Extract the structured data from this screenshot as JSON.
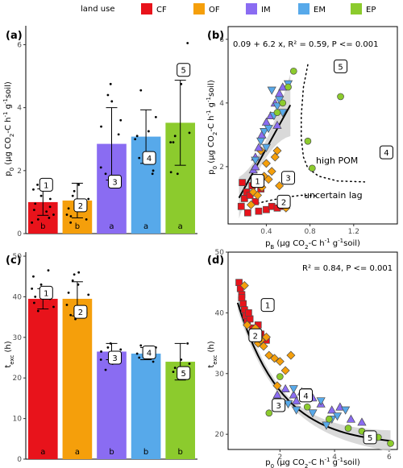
{
  "legend": {
    "title": "land use",
    "items": [
      {
        "key": "CF",
        "label": "CF",
        "color": "#e8131b"
      },
      {
        "key": "OF",
        "label": "OF",
        "color": "#f59f0b"
      },
      {
        "key": "IM",
        "label": "IM",
        "color": "#8a6cf2"
      },
      {
        "key": "EM",
        "label": "EM",
        "color": "#57a9ea"
      },
      {
        "key": "EP",
        "label": "EP",
        "color": "#8ccb2d"
      }
    ]
  },
  "chart_data": [
    {
      "id": "a",
      "panel_label": "(a)",
      "type": "bar",
      "categories": [
        "CF",
        "OF",
        "IM",
        "EM",
        "EP"
      ],
      "values": [
        1.0,
        1.05,
        2.85,
        3.08,
        3.52
      ],
      "errors": [
        0.42,
        0.55,
        1.15,
        0.85,
        1.35
      ],
      "group_letters": [
        "b",
        "b",
        "a",
        "a",
        "a"
      ],
      "box_labels": [
        "1",
        "2",
        "3",
        "4",
        "5"
      ],
      "box_y": [
        1.55,
        0.9,
        1.65,
        2.4,
        5.2
      ],
      "points": [
        [
          1.5,
          1.4,
          1.2,
          1.1,
          0.95,
          0.85,
          0.75,
          0.6,
          0.45,
          0.5,
          0.35,
          1.55,
          0.7
        ],
        [
          1.55,
          1.35,
          1.2,
          0.95,
          0.8,
          0.6,
          0.45,
          0.35,
          0.9,
          1.1,
          0.55
        ],
        [
          4.75,
          4.4,
          3.6,
          3.4,
          3.15,
          2.1,
          1.75,
          1.9,
          4.2
        ],
        [
          4.55,
          3.7,
          3.25,
          3.1,
          2.4,
          2.0,
          1.9,
          3.0
        ],
        [
          6.05,
          4.75,
          3.2,
          3.1,
          2.9,
          1.95,
          1.9,
          2.9
        ]
      ],
      "ylabel": "p0 (μg CO2-C h-1 g-1soil)",
      "ylim": [
        0,
        6.6
      ],
      "yticks": [
        0,
        2,
        4,
        6
      ]
    },
    {
      "id": "b",
      "panel_label": "(b)",
      "type": "scatter",
      "equation": "0.09 + 6.2  x, R² = 0.59, P <= 0.001",
      "xlabel": "pB (μg CO2-C h-1 g-1soil)",
      "ylabel": "p0 (μg CO2-C h-1 g-1soil)",
      "xlim": [
        0.05,
        1.6
      ],
      "ylim": [
        0.2,
        6.4
      ],
      "xticks": [
        0.4,
        0.8,
        1.2
      ],
      "yticks": [
        2,
        4,
        6
      ],
      "fit": {
        "intercept": 0.09,
        "slope": 6.2,
        "x_range": [
          0.15,
          0.62
        ]
      },
      "annotations": [
        "high POM",
        "uncertain lag"
      ],
      "box_labels": [
        {
          "label": "1",
          "x": 0.32,
          "y": 1.55
        },
        {
          "label": "2",
          "x": 0.56,
          "y": 0.9
        },
        {
          "label": "3",
          "x": 0.6,
          "y": 1.65
        },
        {
          "label": "4",
          "x": 1.5,
          "y": 2.45
        },
        {
          "label": "5",
          "x": 1.08,
          "y": 5.15
        }
      ],
      "series": [
        {
          "group": "CF",
          "shape": "square",
          "x": [
            0.17,
            0.2,
            0.22,
            0.25,
            0.27,
            0.3,
            0.33,
            0.35,
            0.18,
            0.4,
            0.45,
            0.5,
            0.55,
            0.23,
            0.29
          ],
          "y": [
            0.75,
            1.0,
            1.2,
            1.1,
            1.4,
            0.9,
            0.6,
            1.3,
            1.5,
            0.65,
            0.75,
            0.7,
            0.75,
            0.55,
            1.6
          ]
        },
        {
          "group": "OF",
          "shape": "diamond",
          "x": [
            0.26,
            0.28,
            0.3,
            0.32,
            0.36,
            0.38,
            0.4,
            0.42,
            0.45,
            0.48,
            0.5,
            0.52,
            0.35,
            0.58
          ],
          "y": [
            0.8,
            1.2,
            1.5,
            1.1,
            1.35,
            1.7,
            2.1,
            1.6,
            1.85,
            2.3,
            2.5,
            1.4,
            2.5,
            0.7
          ]
        },
        {
          "group": "IM",
          "shape": "triangle-up",
          "x": [
            0.28,
            0.3,
            0.33,
            0.36,
            0.4,
            0.44,
            0.48,
            0.5,
            0.55,
            0.3,
            0.52
          ],
          "y": [
            1.9,
            2.3,
            2.6,
            3.0,
            3.4,
            3.6,
            4.0,
            3.3,
            4.5,
            2.0,
            4.3
          ]
        },
        {
          "group": "EM",
          "shape": "triangle-down",
          "x": [
            0.3,
            0.35,
            0.38,
            0.42,
            0.45,
            0.5,
            0.52,
            0.55,
            0.6,
            0.4,
            0.47
          ],
          "y": [
            2.2,
            2.8,
            3.1,
            3.2,
            4.4,
            3.9,
            4.1,
            3.7,
            4.6,
            2.6,
            3.6
          ]
        },
        {
          "group": "EP",
          "shape": "circle",
          "x": [
            0.5,
            0.55,
            0.6,
            0.65,
            0.78,
            0.82,
            1.08,
            0.62
          ],
          "y": [
            3.7,
            4.0,
            4.5,
            5.0,
            2.8,
            1.95,
            4.2,
            1.55
          ]
        }
      ]
    },
    {
      "id": "c",
      "panel_label": "(c)",
      "type": "bar",
      "categories": [
        "CF",
        "OF",
        "IM",
        "EM",
        "EP"
      ],
      "values": [
        39.5,
        39.5,
        26.5,
        26.0,
        24.0
      ],
      "errors": [
        2.5,
        4.2,
        2.0,
        1.5,
        4.5
      ],
      "group_letters": [
        "a",
        "a",
        "b",
        "b",
        "b"
      ],
      "box_labels": [
        "1",
        "2",
        "3",
        "4",
        "5"
      ],
      "box_y": [
        41.0,
        36.3,
        25.0,
        26.3,
        21.2
      ],
      "points": [
        [
          46.5,
          45.0,
          43.0,
          41.5,
          40.0,
          39.5,
          38.5,
          37.5,
          36.5,
          40.5,
          42.0
        ],
        [
          46.0,
          45.5,
          44.0,
          43.0,
          41.0,
          38.0,
          36.0,
          35.5,
          34.5,
          40.5
        ],
        [
          28.5,
          27.5,
          27.0,
          26.5,
          25.5,
          24.5,
          23.5,
          22.0
        ],
        [
          28.0,
          27.5,
          27.0,
          26.0,
          25.0,
          24.0,
          27.0
        ],
        [
          28.5,
          24.5,
          23.5,
          22.5,
          21.5
        ]
      ],
      "ylabel": "texc (h)",
      "ylim": [
        0,
        51
      ],
      "yticks": [
        0,
        10,
        20,
        30,
        40,
        50
      ]
    },
    {
      "id": "d",
      "panel_label": "(d)",
      "type": "scatter",
      "equation": "R² = 0.84, P <= 0.001",
      "xlabel": "p0 (μg CO2-C h-1 g-1soil)",
      "ylabel": "texc (h)",
      "xlim": [
        0.1,
        6.3
      ],
      "ylim": [
        17.5,
        50
      ],
      "xticks": [
        2,
        4,
        6
      ],
      "yticks": [
        20,
        30,
        40,
        50
      ],
      "box_labels": [
        {
          "label": "1",
          "x": 1.55,
          "y": 41.3
        },
        {
          "label": "2",
          "x": 1.1,
          "y": 36.3
        },
        {
          "label": "3",
          "x": 1.95,
          "y": 24.8
        },
        {
          "label": "4",
          "x": 2.95,
          "y": 26.4
        },
        {
          "label": "5",
          "x": 5.3,
          "y": 19.5
        }
      ],
      "series": [
        {
          "group": "CF",
          "shape": "square",
          "x": [
            0.5,
            0.55,
            0.6,
            0.65,
            0.7,
            0.75,
            0.8,
            0.9,
            1.0,
            1.1,
            1.2,
            1.3,
            1.5,
            0.6,
            0.85
          ],
          "y": [
            45.0,
            44.0,
            43.0,
            41.5,
            40.5,
            39.5,
            38.5,
            39.0,
            37.5,
            37.0,
            38.0,
            36.5,
            35.5,
            42.5,
            40.0
          ]
        },
        {
          "group": "OF",
          "shape": "diamond",
          "x": [
            0.8,
            1.0,
            1.2,
            1.4,
            1.6,
            1.8,
            2.0,
            2.2,
            1.5,
            1.1,
            0.7,
            2.4,
            1.3,
            1.9
          ],
          "y": [
            38.0,
            36.5,
            35.0,
            34.5,
            33.0,
            32.5,
            32.0,
            30.5,
            36.0,
            37.5,
            44.5,
            33.0,
            35.5,
            28.0
          ]
        },
        {
          "group": "IM",
          "shape": "triangle-up",
          "x": [
            1.9,
            2.2,
            2.5,
            2.8,
            3.2,
            3.5,
            3.9,
            4.6,
            5.0,
            4.2,
            2.6
          ],
          "y": [
            26.5,
            27.5,
            26.5,
            27.0,
            26.0,
            25.0,
            24.0,
            22.5,
            22.0,
            24.5,
            25.5
          ]
        },
        {
          "group": "EM",
          "shape": "triangle-down",
          "x": [
            2.3,
            2.6,
            2.9,
            3.2,
            3.5,
            3.9,
            4.1,
            4.4,
            3.0,
            3.7,
            2.5
          ],
          "y": [
            25.0,
            24.0,
            26.0,
            23.5,
            25.5,
            22.5,
            23.0,
            24.0,
            27.0,
            21.5,
            27.5
          ]
        },
        {
          "group": "EP",
          "shape": "circle",
          "x": [
            1.6,
            2.0,
            3.0,
            3.8,
            4.5,
            5.0,
            5.6,
            6.05
          ],
          "y": [
            23.5,
            29.5,
            24.5,
            22.5,
            21.0,
            20.5,
            19.5,
            18.5
          ]
        }
      ]
    }
  ]
}
